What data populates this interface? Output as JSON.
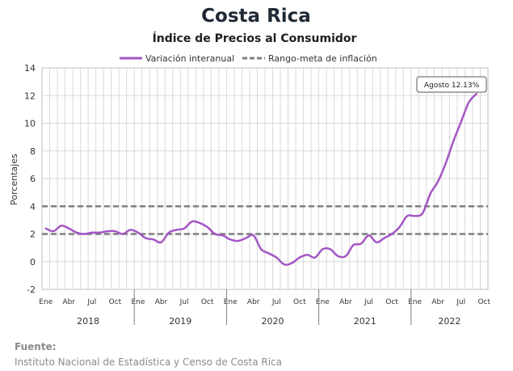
{
  "title": "Costa Rica",
  "subtitle": "Índice de Precios al Consumidor",
  "source": {
    "label": "Fuente:",
    "text": "Instituto Nacional de Estadística y Censo de Costa Rica"
  },
  "colors": {
    "series": "#a456c4",
    "target": "#7f7f7f",
    "grid": "#d9d9d9",
    "negative_tick": "#c00000"
  },
  "chart_data": {
    "type": "line",
    "ylabel": "Porcentajes",
    "ylim": [
      -2,
      14
    ],
    "yticks": [
      -2,
      0,
      2,
      4,
      6,
      8,
      10,
      12,
      14
    ],
    "grid": true,
    "legend_position": "top",
    "month_ticks": [
      "Ene",
      "Abr",
      "Jul",
      "Oct"
    ],
    "years": [
      "2018",
      "2019",
      "2020",
      "2021",
      "2022"
    ],
    "x_start": "2018-01",
    "x_end": "2022-08",
    "series": [
      {
        "name": "Variación interanual",
        "values": [
          2.4,
          2.2,
          2.6,
          2.4,
          2.1,
          2.0,
          2.1,
          2.1,
          2.2,
          2.2,
          2.0,
          2.3,
          2.1,
          1.7,
          1.6,
          1.4,
          2.1,
          2.3,
          2.4,
          2.9,
          2.8,
          2.5,
          2.0,
          1.9,
          1.6,
          1.5,
          1.7,
          1.9,
          0.9,
          0.6,
          0.3,
          -0.2,
          -0.1,
          0.3,
          0.5,
          0.3,
          0.9,
          0.9,
          0.4,
          0.4,
          1.2,
          1.3,
          1.9,
          1.4,
          1.7,
          2.0,
          2.5,
          3.3,
          3.3,
          3.5,
          4.9,
          5.8,
          7.1,
          8.7,
          10.1,
          11.5,
          12.13
        ]
      },
      {
        "name": "Rango-meta de inflación",
        "values": [
          4,
          2
        ]
      }
    ],
    "annotation": {
      "text": "Agosto 12.13%",
      "x": "2022-08",
      "y": 12.13
    }
  }
}
